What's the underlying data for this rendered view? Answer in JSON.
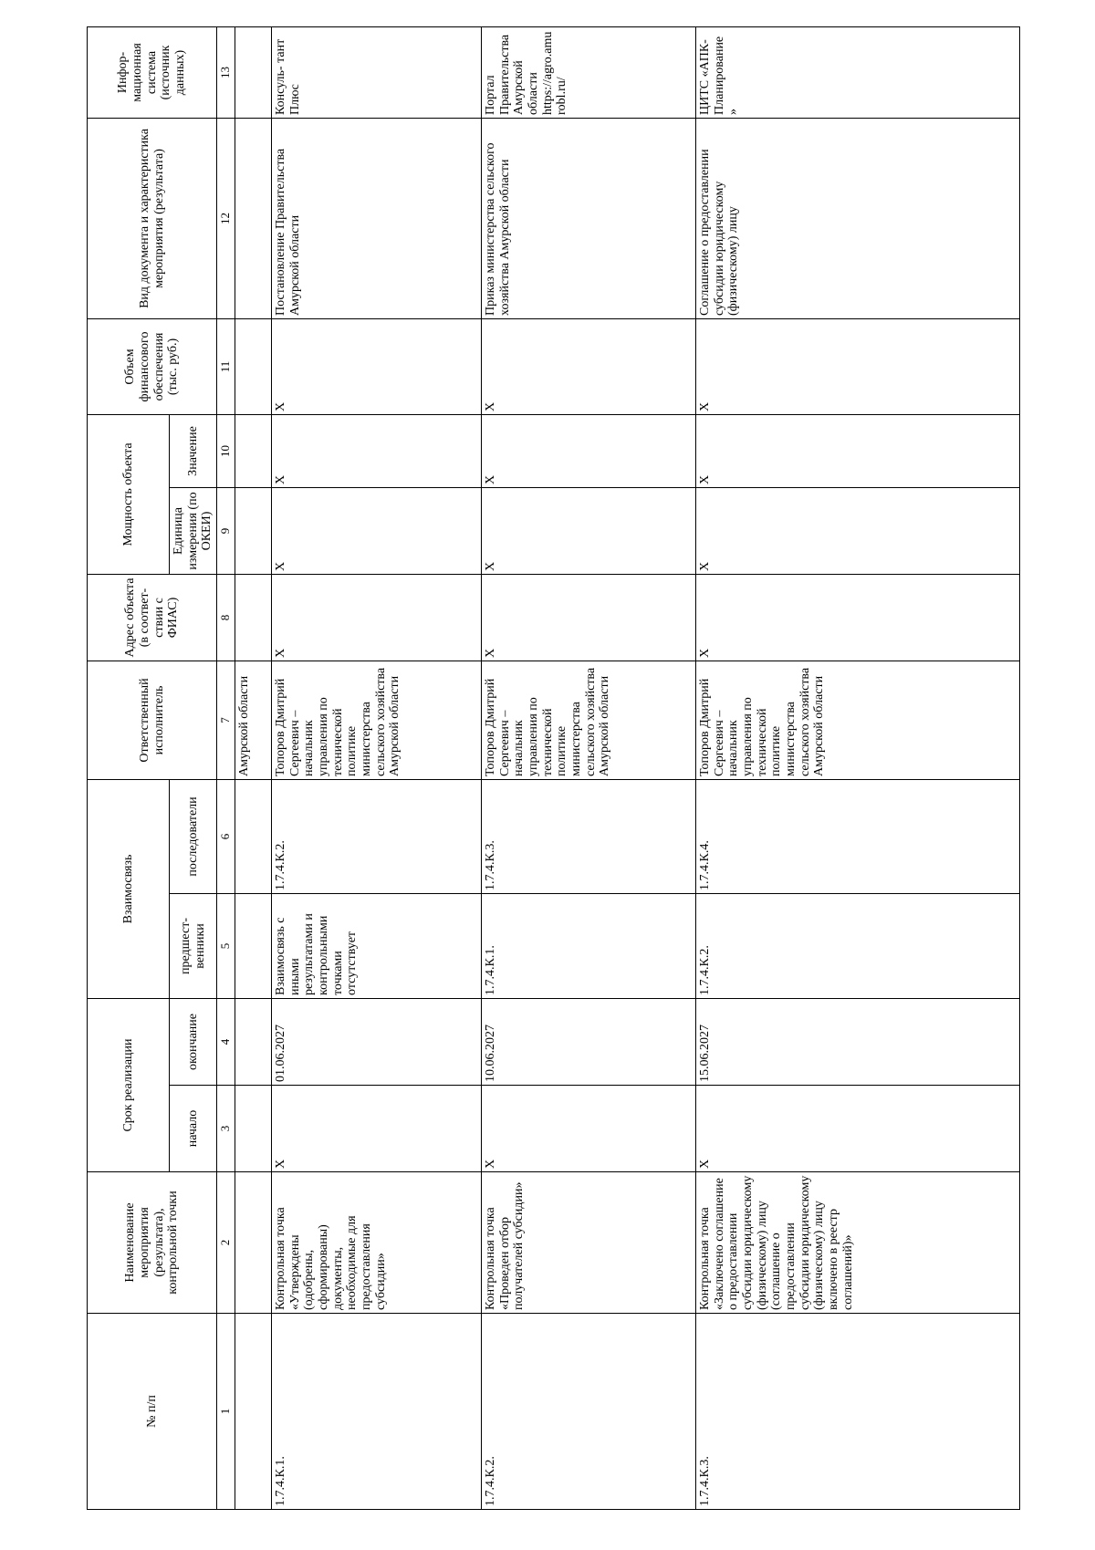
{
  "table": {
    "header": [
      "№ п/п",
      "Наименование мероприятия (результата), контрольной точки",
      "Срок реализации",
      "Взаимосвязь",
      "Ответственный исполнитель",
      "Адрес объекта (в соответ-ствии с ФИАС)",
      "Мощность объекта",
      "Объем финансового обеспечения (тыс. руб.)",
      "Вид документа и характеристика мероприятия (результата)",
      "Инфор-мационная система (источник данных)"
    ],
    "subheader": [
      "начало",
      "окончание",
      "предшест-венники",
      "последователи",
      "Единица измерения (по ОКЕИ)",
      "Значение"
    ],
    "numbers": [
      "1",
      "2",
      "3",
      "4",
      "5",
      "6",
      "7",
      "8",
      "9",
      "10",
      "11",
      "12",
      "13"
    ],
    "continued": "Амурской области",
    "rows": [
      [
        "1.7.4.К.1.",
        "Контрольная точка «Утверждены (одобрены, сформированы) документы, необходимые для предоставления субсидии»",
        "X",
        "01.06.2027",
        "Взаимосвязь с иными результатами и контрольными точками отсутствует",
        "1.7.4.К.2.",
        "Топоров Дмитрий Сергеевич – начальник управления по технической политике министерства сельского хозяйства Амурской области",
        "X",
        "X",
        "X",
        "X",
        "Постановление Правительства Амурской области",
        "Консуль- тант Плюс"
      ],
      [
        "1.7.4.К.2.",
        "Контрольная точка «Проведен отбор получателей субсидии»",
        "X",
        "10.06.2027",
        "1.7.4.К.1.",
        "1.7.4.К.3.",
        "Топоров Дмитрий Сергеевич – начальник управления по технической политике министерства сельского хозяйства Амурской области",
        "X",
        "X",
        "X",
        "X",
        "Приказ министерства сельского хозяйства Амурской области",
        "Портал Правительства Амурской области https://agro.amurobl.ru/"
      ],
      [
        "1.7.4.К.3.",
        "Контрольная точка «Заключено соглашение о предоставлении субсидии юридическому (физическому) лицу (соглашение о предоставлении субсидии юридическому (физическому) лицу включено в реестр соглашений)»",
        "X",
        "15.06.2027",
        "1.7.4.К.2.",
        "1.7.4.К.4.",
        "Топоров Дмитрий Сергеевич – начальник управления по технической политике министерства сельского хозяйства Амурской области",
        "X",
        "X",
        "X",
        "X",
        "Соглашение о предоставлении субсидии юридическому (физическому) лицу",
        "ЦИТС «АПК-Планирование»"
      ]
    ]
  }
}
